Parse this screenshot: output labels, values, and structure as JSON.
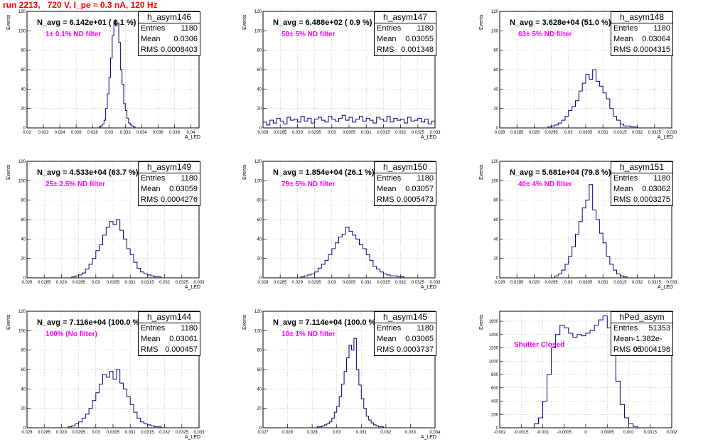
{
  "canvas_title": "run 2213,   720 V, I_pe ≈ 0.3 nA, 120 Hz",
  "colors": {
    "hist_line": "#000080",
    "title": "#ff0000",
    "filter_label": "#ff00ff",
    "grid": "#a0a0a0"
  },
  "chart_data": [
    {
      "type": "bar",
      "name": "h_asym146",
      "navg_label": "N_avg = 6.142e+01 ( 0.1 %)",
      "filter_label": "1± 0.1% ND filter",
      "stats": {
        "entries": "1180",
        "mean": "0.0306",
        "rms": "0.0008403"
      },
      "ylabel": "Events",
      "xlabel": "A_LED",
      "xlim": [
        0.02,
        0.041
      ],
      "ylim": [
        0,
        120
      ],
      "xticks": [
        "0.02",
        "0.022",
        "0.024",
        "0.026",
        "0.028",
        "0.03",
        "0.032",
        "0.034",
        "0.036",
        "0.038",
        "0.04"
      ],
      "yticks": [
        "0",
        "20",
        "40",
        "60",
        "80",
        "100",
        "120"
      ],
      "bin_centers": [
        0.0289,
        0.0291,
        0.0293,
        0.0295,
        0.0297,
        0.0299,
        0.0301,
        0.0303,
        0.0305,
        0.0307,
        0.0309,
        0.0311,
        0.0313,
        0.0315,
        0.0317,
        0.0319,
        0.0321,
        0.0323,
        0.0325,
        0.0327,
        0.0329,
        0.0331
      ],
      "values": [
        1,
        2,
        4,
        8,
        20,
        35,
        52,
        72,
        95,
        110,
        105,
        108,
        88,
        60,
        45,
        25,
        18,
        10,
        5,
        3,
        2,
        1
      ]
    },
    {
      "type": "bar",
      "name": "h_asym147",
      "navg_label": "N_avg = 6.488e+02 ( 0.9 %)",
      "filter_label": "50± 5% ND filter",
      "stats": {
        "entries": "1180",
        "mean": "0.03055",
        "rms": "0.001348"
      },
      "ylabel": "Events",
      "xlabel": "A_LED",
      "xlim": [
        0.028,
        0.033
      ],
      "ylim": [
        0,
        120
      ],
      "xticks": [
        "0.028",
        "0.0285",
        "0.029",
        "0.0295",
        "0.03",
        "0.0305",
        "0.031",
        "0.0315",
        "0.032",
        "0.0325",
        "0.033"
      ],
      "yticks": [
        "0",
        "20",
        "40",
        "60",
        "80",
        "100",
        "120"
      ],
      "bin_centers": [
        0.02805,
        0.02815,
        0.02825,
        0.02835,
        0.02845,
        0.02855,
        0.02865,
        0.02875,
        0.02885,
        0.02895,
        0.02905,
        0.02915,
        0.02925,
        0.02935,
        0.02945,
        0.02955,
        0.02965,
        0.02975,
        0.02985,
        0.02995,
        0.03005,
        0.03015,
        0.03025,
        0.03035,
        0.03045,
        0.03055,
        0.03065,
        0.03075,
        0.03085,
        0.03095,
        0.03105,
        0.03115,
        0.03125,
        0.03135,
        0.03145,
        0.03155,
        0.03165,
        0.03175,
        0.03185,
        0.03195,
        0.03205,
        0.03215,
        0.03225,
        0.03235,
        0.03245,
        0.03255,
        0.03265,
        0.03275,
        0.03285,
        0.03295
      ],
      "values": [
        6,
        3,
        8,
        5,
        10,
        7,
        4,
        11,
        8,
        9,
        6,
        12,
        7,
        10,
        5,
        9,
        11,
        8,
        6,
        12,
        9,
        7,
        10,
        13,
        8,
        11,
        6,
        9,
        12,
        7,
        10,
        8,
        5,
        11,
        9,
        7,
        12,
        6,
        10,
        8,
        9,
        5,
        11,
        7,
        8,
        10,
        6,
        9,
        4,
        7
      ]
    },
    {
      "type": "bar",
      "name": "h_asym148",
      "navg_label": "N_avg = 3.628e+04 (51.0 %)",
      "filter_label": "63± 5% ND filter",
      "stats": {
        "entries": "1180",
        "mean": "0.03064",
        "rms": "0.0004315"
      },
      "ylabel": "Events",
      "xlabel": "A_LED",
      "xlim": [
        0.028,
        0.033
      ],
      "ylim": [
        0,
        120
      ],
      "xticks": [
        "0.028",
        "0.0285",
        "0.029",
        "0.0295",
        "0.03",
        "0.0305",
        "0.031",
        "0.0315",
        "0.032",
        "0.0325",
        "0.033"
      ],
      "yticks": [
        "0",
        "20",
        "40",
        "60",
        "80",
        "100",
        "120"
      ],
      "bin_centers": [
        0.02945,
        0.02955,
        0.02965,
        0.02975,
        0.02985,
        0.02995,
        0.03005,
        0.03015,
        0.03025,
        0.03035,
        0.03045,
        0.03055,
        0.03065,
        0.03075,
        0.03085,
        0.03095,
        0.03105,
        0.03115,
        0.03125,
        0.03135,
        0.03145,
        0.03155,
        0.03165,
        0.03175,
        0.03185,
        0.03195
      ],
      "values": [
        1,
        2,
        3,
        5,
        8,
        12,
        18,
        22,
        28,
        38,
        46,
        55,
        50,
        60,
        48,
        43,
        36,
        30,
        20,
        12,
        8,
        4,
        2,
        2,
        1,
        1
      ]
    },
    {
      "type": "bar",
      "name": "h_asym149",
      "navg_label": "N_avg = 4.533e+04 (63.7 %)",
      "filter_label": "25± 2.5% ND filter",
      "stats": {
        "entries": "1180",
        "mean": "0.03059",
        "rms": "0.0004276"
      },
      "ylabel": "Events",
      "xlabel": "A_LED",
      "xlim": [
        0.028,
        0.033
      ],
      "ylim": [
        0,
        120
      ],
      "xticks": [
        "0.028",
        "0.0285",
        "0.029",
        "0.0295",
        "0.03",
        "0.0305",
        "0.031",
        "0.0315",
        "0.032",
        "0.0325",
        "0.033"
      ],
      "yticks": [
        "0",
        "20",
        "40",
        "60",
        "80",
        "100",
        "120"
      ],
      "bin_centers": [
        0.02935,
        0.02945,
        0.02955,
        0.02965,
        0.02975,
        0.02985,
        0.02995,
        0.03005,
        0.03015,
        0.03025,
        0.03035,
        0.03045,
        0.03055,
        0.03065,
        0.03075,
        0.03085,
        0.03095,
        0.03105,
        0.03115,
        0.03125,
        0.03135,
        0.03145,
        0.03155,
        0.03165,
        0.03175,
        0.03185
      ],
      "values": [
        1,
        2,
        3,
        5,
        9,
        14,
        20,
        28,
        34,
        44,
        52,
        58,
        55,
        60,
        49,
        40,
        30,
        24,
        16,
        10,
        6,
        4,
        3,
        2,
        1,
        1
      ]
    },
    {
      "type": "bar",
      "name": "h_asym150",
      "navg_label": "N_avg = 1.854e+04 (26.1 %)",
      "filter_label": "79± 5% ND filter",
      "stats": {
        "entries": "1180",
        "mean": "0.03057",
        "rms": "0.0005473"
      },
      "ylabel": "Events",
      "xlabel": "A_LED",
      "xlim": [
        0.028,
        0.033
      ],
      "ylim": [
        0,
        120
      ],
      "xticks": [
        "0.028",
        "0.0285",
        "0.029",
        "0.0295",
        "0.03",
        "0.0305",
        "0.031",
        "0.0315",
        "0.032",
        "0.0325",
        "0.033"
      ],
      "yticks": [
        "0",
        "20",
        "40",
        "60",
        "80",
        "100",
        "120"
      ],
      "bin_centers": [
        0.02915,
        0.02925,
        0.02935,
        0.02945,
        0.02955,
        0.02965,
        0.02975,
        0.02985,
        0.02995,
        0.03005,
        0.03015,
        0.03025,
        0.03035,
        0.03045,
        0.03055,
        0.03065,
        0.03075,
        0.03085,
        0.03095,
        0.03105,
        0.03115,
        0.03125,
        0.03135,
        0.03145,
        0.03155,
        0.03165,
        0.03175,
        0.03185,
        0.03195,
        0.03205
      ],
      "values": [
        1,
        2,
        3,
        4,
        6,
        10,
        14,
        18,
        24,
        30,
        36,
        42,
        45,
        52,
        48,
        44,
        40,
        34,
        30,
        24,
        18,
        12,
        9,
        6,
        4,
        3,
        2,
        2,
        1,
        1
      ]
    },
    {
      "type": "bar",
      "name": "h_asym151",
      "navg_label": "N_avg = 5.681e+04 (79.8 %)",
      "filter_label": "40± 4% ND filter",
      "stats": {
        "entries": "1180",
        "mean": "0.03062",
        "rms": "0.0003275"
      },
      "ylabel": "Events",
      "xlabel": "A_LED",
      "xlim": [
        0.028,
        0.033
      ],
      "ylim": [
        0,
        120
      ],
      "xticks": [
        "0.028",
        "0.0285",
        "0.029",
        "0.0295",
        "0.03",
        "0.0305",
        "0.031",
        "0.0315",
        "0.032",
        "0.0325",
        "0.033"
      ],
      "yticks": [
        "0",
        "20",
        "40",
        "60",
        "80",
        "100",
        "120"
      ],
      "bin_centers": [
        0.02965,
        0.02975,
        0.02985,
        0.02995,
        0.03005,
        0.03015,
        0.03025,
        0.03035,
        0.03045,
        0.03055,
        0.03065,
        0.03075,
        0.03085,
        0.03095,
        0.03105,
        0.03115,
        0.03125,
        0.03135,
        0.03145,
        0.03155,
        0.03165
      ],
      "values": [
        2,
        4,
        8,
        14,
        22,
        32,
        45,
        58,
        72,
        80,
        96,
        70,
        60,
        46,
        36,
        22,
        14,
        8,
        4,
        2,
        1
      ]
    },
    {
      "type": "bar",
      "name": "h_asym144",
      "navg_label": "N_avg = 7.116e+04 (100.0 %)",
      "filter_label": "100% (No filter)",
      "stats": {
        "entries": "1180",
        "mean": "0.03061",
        "rms": "0.000457"
      },
      "ylabel": "Events",
      "xlabel": "A_LED",
      "xlim": [
        0.028,
        0.033
      ],
      "ylim": [
        0,
        120
      ],
      "xticks": [
        "0.028",
        "0.0285",
        "0.029",
        "0.0295",
        "0.03",
        "0.0305",
        "0.031",
        "0.0315",
        "0.032",
        "0.0325",
        "0.033"
      ],
      "yticks": [
        "0",
        "20",
        "40",
        "60",
        "80",
        "100",
        "120"
      ],
      "bin_centers": [
        0.02925,
        0.02935,
        0.02945,
        0.02955,
        0.02965,
        0.02975,
        0.02985,
        0.02995,
        0.03005,
        0.03015,
        0.03025,
        0.03035,
        0.03045,
        0.03055,
        0.03065,
        0.03075,
        0.03085,
        0.03095,
        0.03105,
        0.03115,
        0.03125,
        0.03135,
        0.03145,
        0.03155,
        0.03165,
        0.03175,
        0.03185
      ],
      "values": [
        1,
        2,
        4,
        6,
        10,
        14,
        20,
        28,
        36,
        45,
        55,
        52,
        58,
        50,
        60,
        46,
        40,
        32,
        24,
        16,
        10,
        6,
        4,
        3,
        2,
        1,
        1
      ]
    },
    {
      "type": "bar",
      "name": "h_asym145",
      "navg_label": "N_avg = 7.114e+04 (100.0 %)",
      "filter_label": "10± 1% ND filter",
      "stats": {
        "entries": "1180",
        "mean": "0.03065",
        "rms": "0.0003737"
      },
      "ylabel": "Events",
      "xlabel": "A_LED",
      "xlim": [
        0.027,
        0.034
      ],
      "ylim": [
        0,
        120
      ],
      "xticks": [
        "0.027",
        "0.028",
        "0.029",
        "0.03",
        "0.031",
        "0.032",
        "0.033",
        "0.034"
      ],
      "yticks": [
        "0",
        "20",
        "40",
        "60",
        "80",
        "100",
        "120"
      ],
      "bin_centers": [
        0.02925,
        0.02935,
        0.02945,
        0.02955,
        0.02965,
        0.02975,
        0.02985,
        0.02995,
        0.03005,
        0.03015,
        0.03025,
        0.03035,
        0.03045,
        0.03055,
        0.03065,
        0.03075,
        0.03085,
        0.03095,
        0.03105,
        0.03115,
        0.03125,
        0.03135,
        0.03145,
        0.03155,
        0.03165,
        0.03175,
        0.03185
      ],
      "values": [
        1,
        1,
        2,
        3,
        4,
        6,
        10,
        16,
        22,
        32,
        45,
        58,
        72,
        85,
        80,
        92,
        60,
        44,
        30,
        20,
        12,
        8,
        5,
        3,
        2,
        1,
        1
      ]
    },
    {
      "type": "bar",
      "name": "hPed_asym",
      "navg_label": "",
      "filter_label": "Shutter Closed",
      "stats": {
        "entries": "51353",
        "mean": "-1.382e-05",
        "rms": "0.0004198"
      },
      "ylabel": "Events",
      "xlabel": "",
      "xlim": [
        -0.002,
        0.002
      ],
      "ylim": [
        0,
        1750
      ],
      "xticks": [
        "-0.002",
        "-0.0015",
        "-0.001",
        "-0.0005",
        "0",
        "0.0005",
        "0.001",
        "0.0015",
        "0.002"
      ],
      "yticks": [
        "0",
        "200",
        "400",
        "600",
        "800",
        "1000",
        "1200",
        "1400",
        "1600"
      ],
      "bin_centers": [
        -0.00115,
        -0.00105,
        -0.00095,
        -0.00085,
        -0.00075,
        -0.00065,
        -0.00055,
        -0.00045,
        -0.00035,
        -0.00025,
        -0.00015,
        -5e-05,
        5e-05,
        0.00015,
        0.00025,
        0.00035,
        0.00045,
        0.00055,
        0.00065,
        0.00075,
        0.00085,
        0.00095,
        0.00105,
        0.00115
      ],
      "values": [
        60,
        150,
        400,
        800,
        1200,
        1400,
        1540,
        1500,
        1420,
        1360,
        1400,
        1380,
        1420,
        1460,
        1540,
        1620,
        1680,
        1500,
        1100,
        700,
        350,
        150,
        60,
        20
      ]
    }
  ]
}
